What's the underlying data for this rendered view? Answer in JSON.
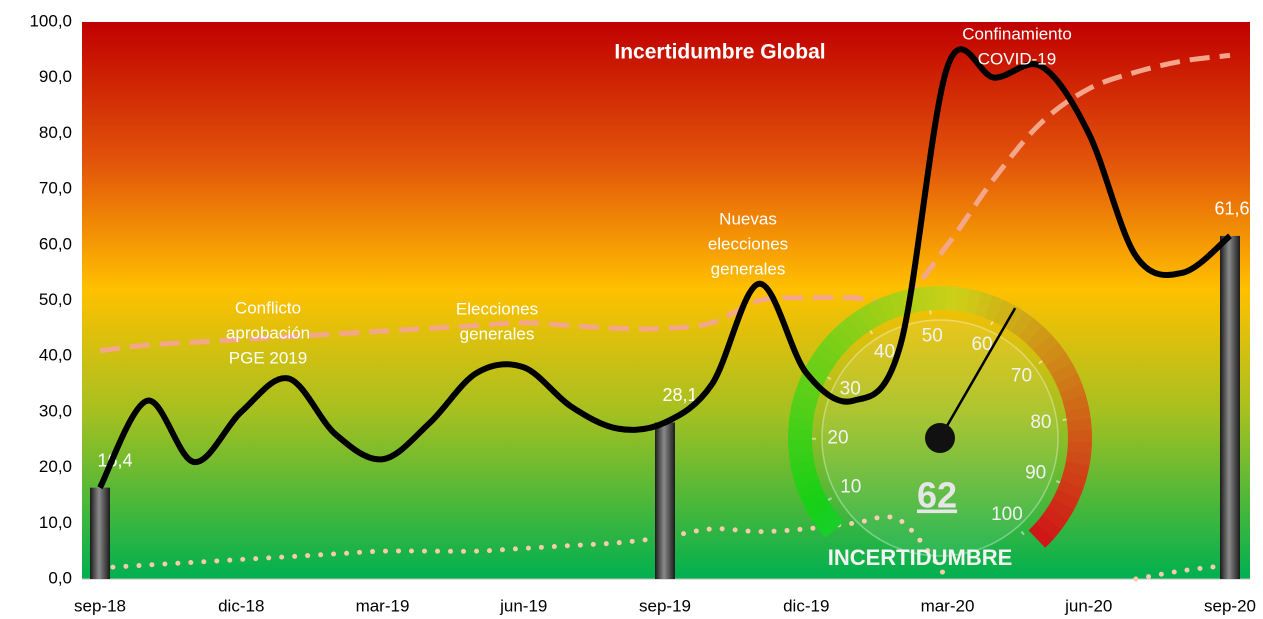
{
  "chart_data": {
    "type": "line",
    "title": "Incertidumbre Global",
    "categories": [
      "sep-18",
      null,
      null,
      "dic-18",
      null,
      null,
      "mar-19",
      null,
      null,
      "jun-19",
      null,
      null,
      "sep-19",
      null,
      null,
      "dic-19",
      null,
      null,
      "mar-20",
      null,
      null,
      "jun-20",
      null,
      null,
      "sep-20"
    ],
    "series": [
      {
        "type": "area-note",
        "style": "dashed",
        "color": "#f4a68a",
        "values": [
          41,
          42,
          42.5,
          43,
          43.5,
          44,
          44.5,
          45,
          45.5,
          46,
          45.5,
          45,
          45,
          46,
          50,
          50.5,
          50.5,
          50,
          60,
          72,
          82,
          88,
          91,
          93,
          94
        ]
      },
      {
        "type": "area-note",
        "style": "dotted",
        "color": "#f8cbad",
        "values": [
          2,
          2.5,
          3,
          3.5,
          4,
          4.5,
          5,
          5,
          5,
          5.5,
          6,
          6.5,
          7.5,
          9,
          8.5,
          9,
          10,
          10.5,
          0,
          null,
          null,
          null,
          0,
          1.5,
          2.5
        ]
      },
      {
        "type": "bar",
        "color": "#555555",
        "values": [
          16.4,
          null,
          null,
          null,
          null,
          null,
          null,
          null,
          null,
          null,
          null,
          null,
          28.1,
          null,
          null,
          null,
          null,
          null,
          null,
          null,
          null,
          null,
          null,
          null,
          61.6
        ],
        "value_labels": [
          "16,4",
          null,
          null,
          null,
          null,
          null,
          null,
          null,
          null,
          null,
          null,
          null,
          "28,1",
          null,
          null,
          null,
          null,
          null,
          null,
          null,
          null,
          null,
          null,
          null,
          "61,6"
        ]
      },
      {
        "type": "line",
        "style": "solid",
        "color": "#000000",
        "values": [
          16.4,
          32,
          21,
          30,
          36,
          26,
          21.5,
          28,
          37,
          38,
          31,
          27,
          28.1,
          35,
          53,
          37,
          32,
          42,
          92,
          90,
          92,
          80,
          58,
          55,
          61.6
        ]
      }
    ],
    "ylim": [
      0,
      100
    ],
    "yticks": [
      {
        "value": 0,
        "label": "0,0"
      },
      {
        "value": 10,
        "label": "10,0"
      },
      {
        "value": 20,
        "label": "20,0"
      },
      {
        "value": 30,
        "label": "30,0"
      },
      {
        "value": 40,
        "label": "40,0"
      },
      {
        "value": 50,
        "label": "50,0"
      },
      {
        "value": 60,
        "label": "60,0"
      },
      {
        "value": 70,
        "label": "70,0"
      },
      {
        "value": 80,
        "label": "80,0"
      },
      {
        "value": 90,
        "label": "90,0"
      },
      {
        "value": 100,
        "label": "100,0"
      }
    ],
    "annotations": [
      {
        "lines": [
          "Conflicto",
          "aprobación",
          "PGE 2019"
        ]
      },
      {
        "lines": [
          "Elecciones",
          "generales"
        ]
      },
      {
        "lines": [
          "Nuevas",
          "elecciones",
          "generales"
        ]
      },
      {
        "lines": [
          "Confinamiento",
          "COVID-19"
        ]
      }
    ],
    "gauge": {
      "value": 62,
      "lim": [
        10,
        100
      ],
      "ticks": [
        10,
        20,
        30,
        40,
        50,
        60,
        70,
        80,
        90,
        100
      ],
      "label": "INCERTIDUMBRE"
    }
  }
}
